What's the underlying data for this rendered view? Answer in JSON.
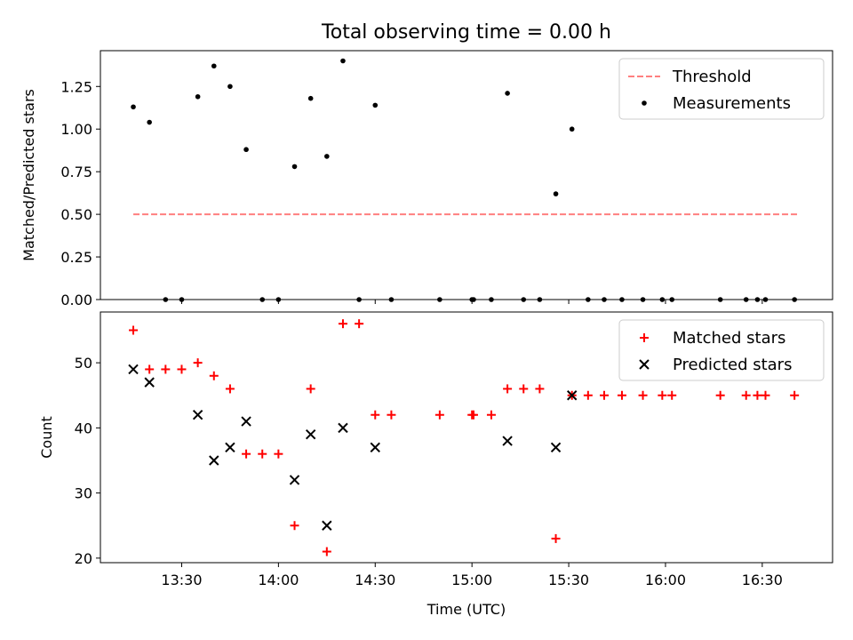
{
  "figure": {
    "title": "Total observing time = 0.00 h",
    "xlabel": "Time (UTC)",
    "xticks": [
      {
        "minute": 810,
        "label": "13:30"
      },
      {
        "minute": 840,
        "label": "14:00"
      },
      {
        "minute": 870,
        "label": "14:30"
      },
      {
        "minute": 900,
        "label": "15:00"
      },
      {
        "minute": 930,
        "label": "15:30"
      },
      {
        "minute": 960,
        "label": "16:00"
      },
      {
        "minute": 990,
        "label": "16:30"
      }
    ],
    "xlim": [
      784.8,
      1011.8
    ]
  },
  "chart_data": [
    {
      "type": "scatter",
      "ylabel": "Matched/Predicted stars",
      "ylim": [
        0,
        1.46
      ],
      "yticks": [
        {
          "value": 0.0,
          "label": "0.00"
        },
        {
          "value": 0.25,
          "label": "0.25"
        },
        {
          "value": 0.5,
          "label": "0.50"
        },
        {
          "value": 0.75,
          "label": "0.75"
        },
        {
          "value": 1.0,
          "label": "1.00"
        },
        {
          "value": 1.25,
          "label": "1.25"
        }
      ],
      "legend": "top-right",
      "threshold": {
        "name": "Threshold",
        "value": 0.5,
        "x_range": [
          795,
          1001
        ],
        "color": "#ff7f7f"
      },
      "series": [
        {
          "name": "Measurements",
          "color": "#000000",
          "x": [
            795,
            800,
            805,
            810,
            815,
            820,
            825,
            830,
            835,
            840,
            845,
            850,
            855,
            860,
            865,
            870,
            875,
            890,
            900,
            900.5,
            906,
            911,
            916,
            921,
            926,
            931,
            936,
            941,
            946.5,
            953,
            959,
            962,
            977,
            985,
            988.5,
            991,
            1000
          ],
          "y": [
            1.13,
            1.04,
            0.0,
            0.0,
            1.19,
            1.37,
            1.25,
            0.88,
            0.0,
            0.0,
            0.78,
            1.18,
            0.84,
            1.4,
            0.0,
            1.14,
            0.0,
            0.0,
            0.0,
            0.0,
            0.0,
            1.21,
            0.0,
            0.0,
            0.62,
            1.0,
            0.0,
            0.0,
            0.0,
            0.0,
            0.0,
            0.0,
            0.0,
            0.0,
            0.0,
            0.0,
            0.0
          ]
        }
      ]
    },
    {
      "type": "scatter",
      "ylabel": "Count",
      "ylim": [
        19.3,
        57.8
      ],
      "yticks": [
        {
          "value": 20,
          "label": "20"
        },
        {
          "value": 30,
          "label": "30"
        },
        {
          "value": 40,
          "label": "40"
        },
        {
          "value": 50,
          "label": "50"
        }
      ],
      "legend": "top-right",
      "series": [
        {
          "name": "Matched stars",
          "marker": "plus",
          "color": "#ff0000",
          "x": [
            795,
            800,
            805,
            810,
            815,
            820,
            825,
            830,
            835,
            840,
            845,
            850,
            855,
            860,
            865,
            870,
            875,
            890,
            900,
            900.5,
            906,
            911,
            916,
            921,
            926,
            931,
            936,
            941,
            946.5,
            953,
            959,
            962,
            977,
            985,
            988.5,
            991,
            1000
          ],
          "y": [
            55,
            49,
            49,
            49,
            50,
            48,
            46,
            36,
            36,
            36,
            25,
            46,
            21,
            56,
            56,
            42,
            42,
            42,
            42,
            42,
            42,
            46,
            46,
            46,
            23,
            45,
            45,
            45,
            45,
            45,
            45,
            45,
            45,
            45,
            45,
            45,
            45
          ]
        },
        {
          "name": "Predicted stars",
          "marker": "x",
          "color": "#000000",
          "x": [
            795,
            800,
            815,
            820,
            825,
            830,
            845,
            850,
            855,
            860,
            870,
            911,
            926,
            931
          ],
          "y": [
            49,
            47,
            42,
            35,
            37,
            41,
            32,
            39,
            25,
            40,
            37,
            38,
            37,
            45
          ]
        }
      ]
    }
  ]
}
